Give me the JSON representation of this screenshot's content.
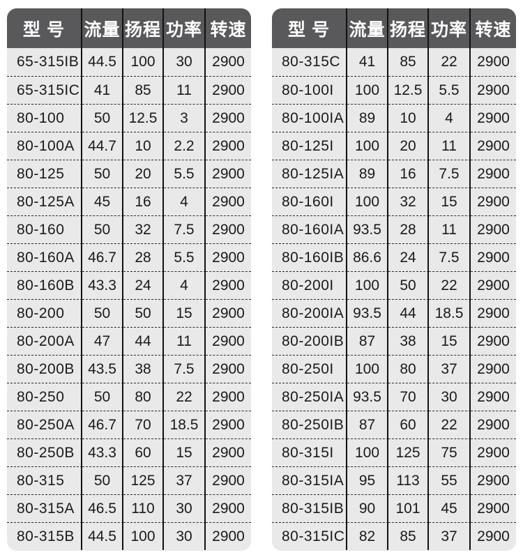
{
  "colors": {
    "header_bg": "#59595b",
    "body_bg": "#e9e9e9",
    "column_divider": "#111111",
    "row_divider": "#2a2a2a",
    "text": "#1a1a1a",
    "header_text": "#ffffff",
    "page_bg": "#ffffff"
  },
  "chart_data": [
    {
      "type": "table",
      "title": "",
      "columns": [
        "型 号",
        "流量",
        "扬程",
        "功率",
        "转速"
      ],
      "rows": [
        [
          "65-315IB",
          "44.5",
          "100",
          "30",
          "2900"
        ],
        [
          "65-315IC",
          "41",
          "85",
          "11",
          "2900"
        ],
        [
          "80-100",
          "50",
          "12.5",
          "3",
          "2900"
        ],
        [
          "80-100A",
          "44.7",
          "10",
          "2.2",
          "2900"
        ],
        [
          "80-125",
          "50",
          "20",
          "5.5",
          "2900"
        ],
        [
          "80-125A",
          "45",
          "16",
          "4",
          "2900"
        ],
        [
          "80-160",
          "50",
          "32",
          "7.5",
          "2900"
        ],
        [
          "80-160A",
          "46.7",
          "28",
          "5.5",
          "2900"
        ],
        [
          "80-160B",
          "43.3",
          "24",
          "4",
          "2900"
        ],
        [
          "80-200",
          "50",
          "50",
          "15",
          "2900"
        ],
        [
          "80-200A",
          "47",
          "44",
          "11",
          "2900"
        ],
        [
          "80-200B",
          "43.5",
          "38",
          "7.5",
          "2900"
        ],
        [
          "80-250",
          "50",
          "80",
          "22",
          "2900"
        ],
        [
          "80-250A",
          "46.7",
          "70",
          "18.5",
          "2900"
        ],
        [
          "80-250B",
          "43.3",
          "60",
          "15",
          "2900"
        ],
        [
          "80-315",
          "50",
          "125",
          "37",
          "2900"
        ],
        [
          "80-315A",
          "46.5",
          "110",
          "30",
          "2900"
        ],
        [
          "80-315B",
          "44.5",
          "100",
          "30",
          "2900"
        ]
      ]
    },
    {
      "type": "table",
      "title": "",
      "columns": [
        "型 号",
        "流量",
        "扬程",
        "功率",
        "转速"
      ],
      "rows": [
        [
          "80-315C",
          "41",
          "85",
          "22",
          "2900"
        ],
        [
          "80-100I",
          "100",
          "12.5",
          "5.5",
          "2900"
        ],
        [
          "80-100IA",
          "89",
          "10",
          "4",
          "2900"
        ],
        [
          "80-125I",
          "100",
          "20",
          "11",
          "2900"
        ],
        [
          "80-125IA",
          "89",
          "16",
          "7.5",
          "2900"
        ],
        [
          "80-160I",
          "100",
          "32",
          "15",
          "2900"
        ],
        [
          "80-160IA",
          "93.5",
          "28",
          "11",
          "2900"
        ],
        [
          "80-160IB",
          "86.6",
          "24",
          "7.5",
          "2900"
        ],
        [
          "80-200I",
          "100",
          "50",
          "22",
          "2900"
        ],
        [
          "80-200IA",
          "93.5",
          "44",
          "18.5",
          "2900"
        ],
        [
          "80-200IB",
          "87",
          "38",
          "15",
          "2900"
        ],
        [
          "80-250I",
          "100",
          "80",
          "37",
          "2900"
        ],
        [
          "80-250IA",
          "93.5",
          "70",
          "30",
          "2900"
        ],
        [
          "80-250IB",
          "87",
          "60",
          "22",
          "2900"
        ],
        [
          "80-315I",
          "100",
          "125",
          "75",
          "2900"
        ],
        [
          "80-315IA",
          "95",
          "113",
          "55",
          "2900"
        ],
        [
          "80-315IB",
          "90",
          "101",
          "45",
          "2900"
        ],
        [
          "80-315IC",
          "82",
          "85",
          "37",
          "2900"
        ]
      ]
    }
  ]
}
